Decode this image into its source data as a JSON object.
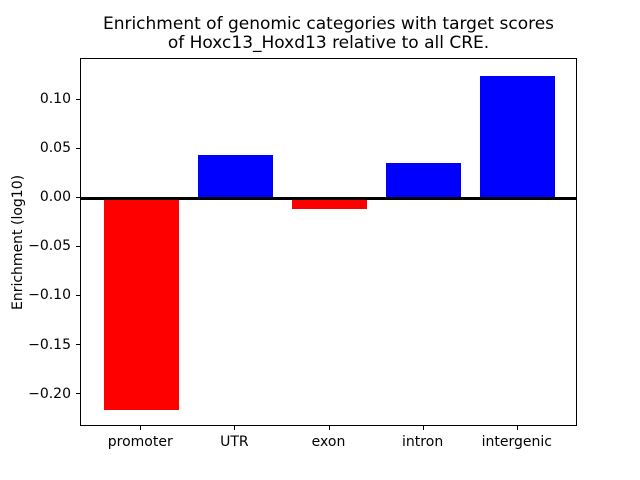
{
  "figure": {
    "title_lines": [
      "Enrichment of genomic categories with target scores",
      "of Hoxc13_Hoxd13 relative to all CRE."
    ]
  },
  "chart_data": {
    "type": "bar",
    "title": "Enrichment of genomic categories with target scores of Hoxc13_Hoxd13 relative to all CRE.",
    "xlabel": "",
    "ylabel": "Enrichment (log10)",
    "categories": [
      "promoter",
      "UTR",
      "exon",
      "intron",
      "intergenic"
    ],
    "values": [
      -0.216,
      0.044,
      -0.011,
      0.036,
      0.125
    ],
    "bar_colors": [
      "#ff0000",
      "#0000ff",
      "#ff0000",
      "#0000ff",
      "#0000ff"
    ],
    "positive_color": "#0000ff",
    "negative_color": "#ff0000",
    "yticks": [
      0.1,
      0.05,
      0.0,
      -0.05,
      -0.1,
      -0.15,
      -0.2
    ],
    "ytick_labels": [
      "0.10",
      "0.05",
      "0.00",
      "−0.05",
      "−0.10",
      "−0.15",
      "−0.20"
    ],
    "ylim": [
      -0.233,
      0.142
    ],
    "xlim": [
      -0.64,
      4.64
    ],
    "bar_width": 0.8,
    "grid": false,
    "legend": null,
    "zero_line": true,
    "frame_color": "#000000",
    "background_color": "#ffffff"
  }
}
